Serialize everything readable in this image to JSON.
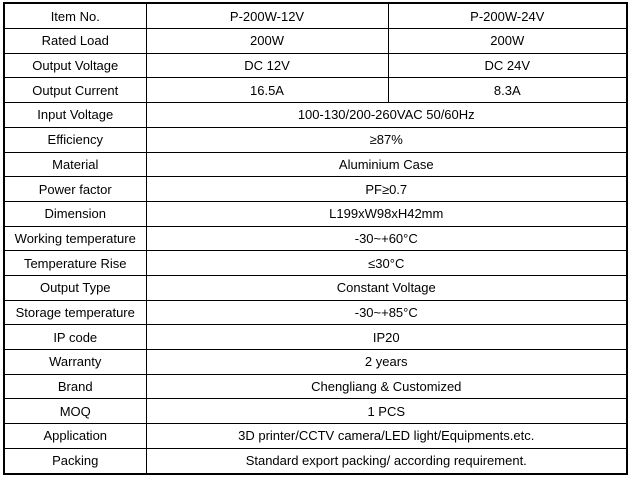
{
  "colors": {
    "border": "#000000",
    "background": "#ffffff",
    "text": "#000000"
  },
  "spec_table": {
    "rows": [
      {
        "label": "Item No.",
        "values": [
          "P-200W-12V",
          "P-200W-24V"
        ]
      },
      {
        "label": "Rated Load",
        "values": [
          "200W",
          "200W"
        ]
      },
      {
        "label": "Output Voltage",
        "values": [
          "DC 12V",
          "DC 24V"
        ]
      },
      {
        "label": "Output Current",
        "values": [
          "16.5A",
          "8.3A"
        ]
      },
      {
        "label": "Input Voltage",
        "value": "100-130/200-260VAC 50/60Hz"
      },
      {
        "label": "Efficiency",
        "value": "≥87%"
      },
      {
        "label": "Material",
        "value": "Aluminium Case"
      },
      {
        "label": "Power factor",
        "value": "PF≥0.7"
      },
      {
        "label": "Dimension",
        "value": "L199xW98xH42mm"
      },
      {
        "label": "Working temperature",
        "value": "-30~+60°C"
      },
      {
        "label": "Temperature Rise",
        "value": "≤30°C"
      },
      {
        "label": "Output Type",
        "value": "Constant Voltage"
      },
      {
        "label": "Storage temperature",
        "value": "-30~+85°C"
      },
      {
        "label": "IP code",
        "value": "IP20"
      },
      {
        "label": "Warranty",
        "value": "2 years"
      },
      {
        "label": "Brand",
        "value": "Chengliang & Customized"
      },
      {
        "label": "MOQ",
        "value": "1 PCS"
      },
      {
        "label": "Application",
        "value": "3D printer/CCTV camera/LED light/Equipments.etc."
      },
      {
        "label": "Packing",
        "value": "Standard export packing/ according requirement."
      }
    ]
  }
}
